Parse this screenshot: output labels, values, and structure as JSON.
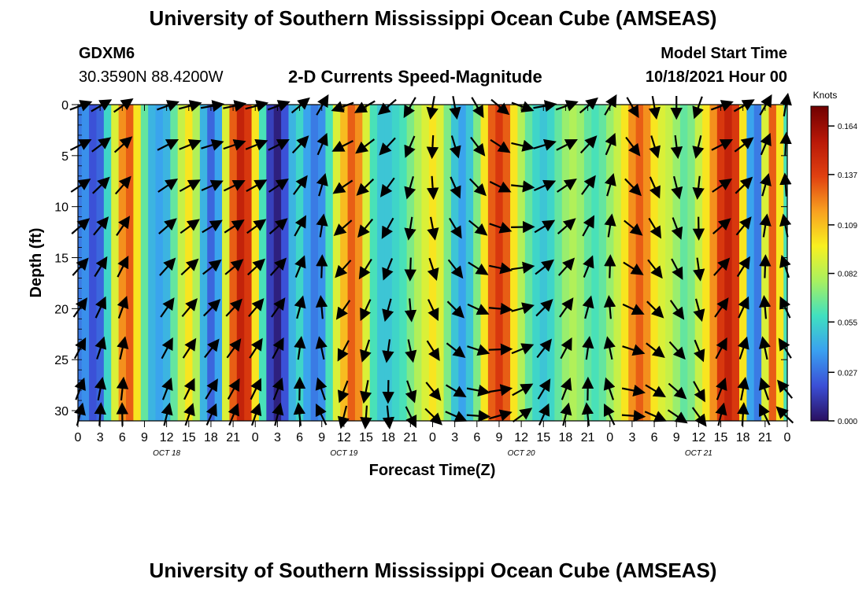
{
  "page": {
    "title_top": "University of Southern Mississippi Ocean Cube (AMSEAS)",
    "station": "GDXM6",
    "location": "30.3590N  88.4200W",
    "plot_title": "2-D Currents Speed-Magnitude",
    "model_start_label": "Model Start Time",
    "model_start_value": "10/18/2021 Hour 00",
    "title_bottom": "University of Southern Mississippi Ocean Cube (AMSEAS)"
  },
  "chart_data": {
    "type": "heatmap",
    "xlabel": "Forecast Time(Z)",
    "ylabel": "Depth (ft)",
    "x_tick_labels": [
      "0",
      "3",
      "6",
      "9",
      "12",
      "15",
      "18",
      "21",
      "0",
      "3",
      "6",
      "9",
      "12",
      "15",
      "18",
      "21",
      "0",
      "3",
      "6",
      "9",
      "12",
      "15",
      "18",
      "21",
      "0",
      "3",
      "6",
      "9",
      "12",
      "15",
      "18",
      "21",
      "0"
    ],
    "date_labels": [
      {
        "text": "OCT 18",
        "hour": 12
      },
      {
        "text": "OCT 19",
        "hour": 36
      },
      {
        "text": "OCT 20",
        "hour": 60
      },
      {
        "text": "OCT 21",
        "hour": 84
      }
    ],
    "x_range_hours": [
      0,
      96
    ],
    "y_ticks": [
      0,
      5,
      10,
      15,
      20,
      25,
      30
    ],
    "ylim_ft": [
      0,
      31
    ],
    "y_inverted": true,
    "colorbar": {
      "unit": "Knots",
      "ticks": [
        "0.164",
        "0.137",
        "0.109",
        "0.082",
        "0.055",
        "0.027",
        "0.000"
      ],
      "tick_values": [
        0.164,
        0.137,
        0.109,
        0.082,
        0.055,
        0.027,
        0.0
      ],
      "range": [
        0.0,
        0.175
      ],
      "colors": [
        "#2a1060",
        "#3b4fd6",
        "#3aa0f0",
        "#40e0c0",
        "#a8f060",
        "#f8f020",
        "#f8a020",
        "#e04010",
        "#b81808",
        "#700000"
      ]
    },
    "speed_by_hour_knots": [
      {
        "hour": 0,
        "speed": 0.03
      },
      {
        "hour": 1,
        "speed": 0.035
      },
      {
        "hour": 2,
        "speed": 0.02
      },
      {
        "hour": 3,
        "speed": 0.025
      },
      {
        "hour": 4,
        "speed": 0.055
      },
      {
        "hour": 5,
        "speed": 0.09
      },
      {
        "hour": 6,
        "speed": 0.12
      },
      {
        "hour": 7,
        "speed": 0.13
      },
      {
        "hour": 8,
        "speed": 0.1
      },
      {
        "hour": 9,
        "speed": 0.065
      },
      {
        "hour": 10,
        "speed": 0.045
      },
      {
        "hour": 11,
        "speed": 0.04
      },
      {
        "hour": 12,
        "speed": 0.045
      },
      {
        "hour": 13,
        "speed": 0.065
      },
      {
        "hour": 14,
        "speed": 0.085
      },
      {
        "hour": 15,
        "speed": 0.1
      },
      {
        "hour": 16,
        "speed": 0.08
      },
      {
        "hour": 17,
        "speed": 0.045
      },
      {
        "hour": 18,
        "speed": 0.025
      },
      {
        "hour": 19,
        "speed": 0.04
      },
      {
        "hour": 20,
        "speed": 0.09
      },
      {
        "hour": 21,
        "speed": 0.13
      },
      {
        "hour": 22,
        "speed": 0.15
      },
      {
        "hour": 23,
        "speed": 0.14
      },
      {
        "hour": 24,
        "speed": 0.1
      },
      {
        "hour": 25,
        "speed": 0.06
      },
      {
        "hour": 26,
        "speed": 0.015
      },
      {
        "hour": 27,
        "speed": 0.005
      },
      {
        "hour": 28,
        "speed": 0.02
      },
      {
        "hour": 29,
        "speed": 0.045
      },
      {
        "hour": 30,
        "speed": 0.055
      },
      {
        "hour": 31,
        "speed": 0.04
      },
      {
        "hour": 32,
        "speed": 0.03
      },
      {
        "hour": 33,
        "speed": 0.035
      },
      {
        "hour": 34,
        "speed": 0.06
      },
      {
        "hour": 35,
        "speed": 0.09
      },
      {
        "hour": 36,
        "speed": 0.11
      },
      {
        "hour": 37,
        "speed": 0.13
      },
      {
        "hour": 38,
        "speed": 0.12
      },
      {
        "hour": 39,
        "speed": 0.09
      },
      {
        "hour": 40,
        "speed": 0.06
      },
      {
        "hour": 41,
        "speed": 0.05
      },
      {
        "hour": 42,
        "speed": 0.05
      },
      {
        "hour": 43,
        "speed": 0.055
      },
      {
        "hour": 44,
        "speed": 0.06
      },
      {
        "hour": 45,
        "speed": 0.07
      },
      {
        "hour": 46,
        "speed": 0.08
      },
      {
        "hour": 47,
        "speed": 0.09
      },
      {
        "hour": 48,
        "speed": 0.1
      },
      {
        "hour": 49,
        "speed": 0.09
      },
      {
        "hour": 50,
        "speed": 0.07
      },
      {
        "hour": 51,
        "speed": 0.05
      },
      {
        "hour": 52,
        "speed": 0.04
      },
      {
        "hour": 53,
        "speed": 0.05
      },
      {
        "hour": 54,
        "speed": 0.07
      },
      {
        "hour": 55,
        "speed": 0.1
      },
      {
        "hour": 56,
        "speed": 0.13
      },
      {
        "hour": 57,
        "speed": 0.14
      },
      {
        "hour": 58,
        "speed": 0.13
      },
      {
        "hour": 59,
        "speed": 0.1
      },
      {
        "hour": 60,
        "speed": 0.08
      },
      {
        "hour": 61,
        "speed": 0.065
      },
      {
        "hour": 62,
        "speed": 0.055
      },
      {
        "hour": 63,
        "speed": 0.05
      },
      {
        "hour": 64,
        "speed": 0.055
      },
      {
        "hour": 65,
        "speed": 0.065
      },
      {
        "hour": 66,
        "speed": 0.075
      },
      {
        "hour": 67,
        "speed": 0.08
      },
      {
        "hour": 68,
        "speed": 0.075
      },
      {
        "hour": 69,
        "speed": 0.065
      },
      {
        "hour": 70,
        "speed": 0.06
      },
      {
        "hour": 71,
        "speed": 0.065
      },
      {
        "hour": 72,
        "speed": 0.075
      },
      {
        "hour": 73,
        "speed": 0.085
      },
      {
        "hour": 74,
        "speed": 0.1
      },
      {
        "hour": 75,
        "speed": 0.12
      },
      {
        "hour": 76,
        "speed": 0.13
      },
      {
        "hour": 77,
        "speed": 0.12
      },
      {
        "hour": 78,
        "speed": 0.1
      },
      {
        "hour": 79,
        "speed": 0.09
      },
      {
        "hour": 80,
        "speed": 0.085
      },
      {
        "hour": 81,
        "speed": 0.075
      },
      {
        "hour": 82,
        "speed": 0.065
      },
      {
        "hour": 83,
        "speed": 0.07
      },
      {
        "hour": 84,
        "speed": 0.085
      },
      {
        "hour": 85,
        "speed": 0.1
      },
      {
        "hour": 86,
        "speed": 0.12
      },
      {
        "hour": 87,
        "speed": 0.14
      },
      {
        "hour": 88,
        "speed": 0.15
      },
      {
        "hour": 89,
        "speed": 0.14
      },
      {
        "hour": 90,
        "speed": 0.1
      },
      {
        "hour": 91,
        "speed": 0.04
      },
      {
        "hour": 92,
        "speed": 0.03
      },
      {
        "hour": 93,
        "speed": 0.09
      },
      {
        "hour": 94,
        "speed": 0.13
      },
      {
        "hour": 95,
        "speed": 0.1
      },
      {
        "hour": 96,
        "speed": 0.06
      }
    ],
    "vector_depths_ft": [
      0,
      4,
      8,
      12,
      16,
      20,
      24,
      28,
      30.5
    ],
    "vector_hours": [
      0,
      3,
      6,
      12,
      15,
      18,
      21,
      24,
      27,
      30,
      33,
      36,
      39,
      42,
      45,
      48,
      51,
      54,
      57,
      60,
      63,
      66,
      69,
      72,
      75,
      78,
      81,
      84,
      87,
      90,
      93,
      96
    ],
    "vector_directions_deg": [
      20,
      30,
      35,
      20,
      15,
      10,
      12,
      15,
      20,
      40,
      60,
      200,
      210,
      220,
      240,
      260,
      280,
      300,
      320,
      340,
      10,
      20,
      40,
      60,
      300,
      280,
      270,
      250,
      20,
      30,
      60,
      80
    ]
  }
}
